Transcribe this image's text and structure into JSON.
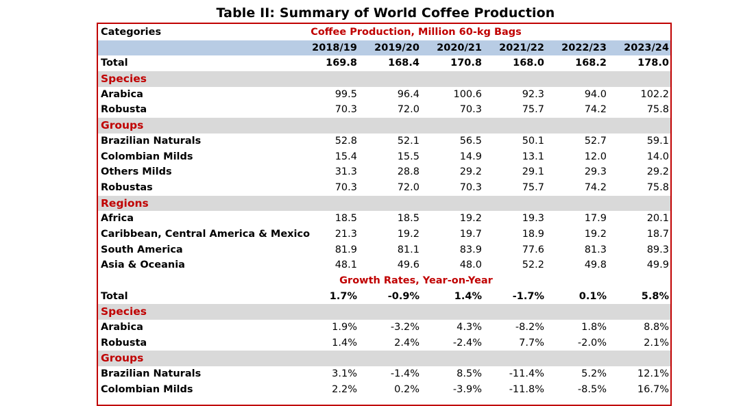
{
  "title": "Table II: Summary of World Coffee Production",
  "header": {
    "categories_label": "Categories",
    "production_heading": "Coffee Production, Million 60-kg Bags",
    "growth_heading": "Growth Rates, Year-on-Year",
    "years": [
      "2018/19",
      "2019/20",
      "2020/21",
      "2021/22",
      "2022/23",
      "2023/24"
    ]
  },
  "production": {
    "total": {
      "label": "Total",
      "values": [
        "169.8",
        "168.4",
        "170.8",
        "168.0",
        "168.2",
        "178.0"
      ]
    },
    "species": {
      "heading": "Species",
      "rows": [
        {
          "label": "Arabica",
          "values": [
            "99.5",
            "96.4",
            "100.6",
            "92.3",
            "94.0",
            "102.2"
          ]
        },
        {
          "label": "Robusta",
          "values": [
            "70.3",
            "72.0",
            "70.3",
            "75.7",
            "74.2",
            "75.8"
          ]
        }
      ]
    },
    "groups": {
      "heading": "Groups",
      "rows": [
        {
          "label": "Brazilian Naturals",
          "values": [
            "52.8",
            "52.1",
            "56.5",
            "50.1",
            "52.7",
            "59.1"
          ]
        },
        {
          "label": "Colombian Milds",
          "values": [
            "15.4",
            "15.5",
            "14.9",
            "13.1",
            "12.0",
            "14.0"
          ]
        },
        {
          "label": "Others Milds",
          "values": [
            "31.3",
            "28.8",
            "29.2",
            "29.1",
            "29.3",
            "29.2"
          ]
        },
        {
          "label": "Robustas",
          "values": [
            "70.3",
            "72.0",
            "70.3",
            "75.7",
            "74.2",
            "75.8"
          ]
        }
      ]
    },
    "regions": {
      "heading": "Regions",
      "rows": [
        {
          "label": "Africa",
          "values": [
            "18.5",
            "18.5",
            "19.2",
            "19.3",
            "17.9",
            "20.1"
          ]
        },
        {
          "label": "Caribbean, Central America & Mexico",
          "values": [
            "21.3",
            "19.2",
            "19.7",
            "18.9",
            "19.2",
            "18.7"
          ]
        },
        {
          "label": "South America",
          "values": [
            "81.9",
            "81.1",
            "83.9",
            "77.6",
            "81.3",
            "89.3"
          ]
        },
        {
          "label": "Asia & Oceania",
          "values": [
            "48.1",
            "49.6",
            "48.0",
            "52.2",
            "49.8",
            "49.9"
          ]
        }
      ]
    }
  },
  "growth": {
    "total": {
      "label": "Total",
      "values": [
        "1.7%",
        "-0.9%",
        "1.4%",
        "-1.7%",
        "0.1%",
        "5.8%"
      ]
    },
    "species": {
      "heading": "Species",
      "rows": [
        {
          "label": "Arabica",
          "values": [
            "1.9%",
            "-3.2%",
            "4.3%",
            "-8.2%",
            "1.8%",
            "8.8%"
          ]
        },
        {
          "label": "Robusta",
          "values": [
            "1.4%",
            "2.4%",
            "-2.4%",
            "7.7%",
            "-2.0%",
            "2.1%"
          ]
        }
      ]
    },
    "groups": {
      "heading": "Groups",
      "rows": [
        {
          "label": "Brazilian Naturals",
          "values": [
            "3.1%",
            "-1.4%",
            "8.5%",
            "-11.4%",
            "5.2%",
            "12.1%"
          ]
        },
        {
          "label": "Colombian Milds",
          "values": [
            "2.2%",
            "0.2%",
            "-3.9%",
            "-11.8%",
            "-8.5%",
            "16.7%"
          ]
        }
      ]
    }
  }
}
